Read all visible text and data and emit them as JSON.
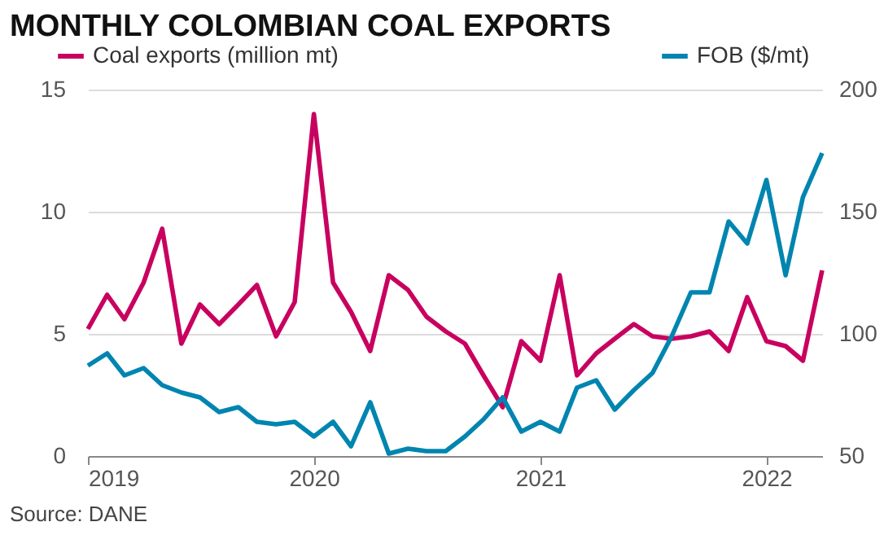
{
  "chart_data": {
    "type": "line",
    "title": "MONTHLY COLOMBIAN COAL EXPORTS",
    "x": [
      "2019-01",
      "2019-02",
      "2019-03",
      "2019-04",
      "2019-05",
      "2019-06",
      "2019-07",
      "2019-08",
      "2019-09",
      "2019-10",
      "2019-11",
      "2019-12",
      "2020-01",
      "2020-02",
      "2020-03",
      "2020-04",
      "2020-05",
      "2020-06",
      "2020-07",
      "2020-08",
      "2020-09",
      "2020-10",
      "2020-11",
      "2020-12",
      "2021-01",
      "2021-02",
      "2021-03",
      "2021-04",
      "2021-05",
      "2021-06",
      "2021-07",
      "2021-08",
      "2021-09",
      "2021-10",
      "2021-11",
      "2021-12",
      "2022-01",
      "2022-02",
      "2022-03",
      "2022-04"
    ],
    "series": [
      {
        "name": "Coal exports (million mt)",
        "color": "#c8005f",
        "values": [
          5.2,
          6.6,
          5.6,
          7.1,
          9.3,
          4.6,
          6.2,
          5.4,
          6.2,
          7.0,
          4.9,
          6.3,
          14.0,
          7.1,
          5.9,
          4.3,
          7.4,
          6.8,
          5.7,
          5.1,
          4.6,
          3.3,
          2.0,
          4.7,
          3.9,
          7.4,
          3.3,
          4.2,
          4.8,
          5.4,
          4.9,
          4.8,
          4.9,
          5.1,
          4.3,
          6.5,
          4.7,
          4.5,
          3.9,
          7.6
        ]
      },
      {
        "name": "FOB ($/mt)",
        "color": "#0085b0",
        "axis": "y2",
        "values": [
          87,
          92,
          83,
          86,
          79,
          76,
          74,
          68,
          70,
          64,
          63,
          64,
          58,
          64,
          54,
          72,
          51,
          53,
          52,
          52,
          58,
          65,
          74,
          60,
          64,
          60,
          78,
          81,
          69,
          77,
          84,
          99,
          117,
          117,
          146,
          137,
          163,
          124,
          156,
          174
        ]
      }
    ],
    "xlim": [
      "2019-01",
      "2022-04"
    ],
    "xticks": [
      "2019",
      "2020",
      "2021",
      "2022"
    ],
    "ylim": [
      0,
      15
    ],
    "yticks": [
      0,
      5,
      10,
      15
    ],
    "y2lim": [
      50,
      200
    ],
    "y2ticks": [
      50,
      100,
      150,
      200
    ],
    "grid": "y",
    "legend": "top",
    "line_style": "solid",
    "annotations": [
      "Source: DANE"
    ]
  }
}
